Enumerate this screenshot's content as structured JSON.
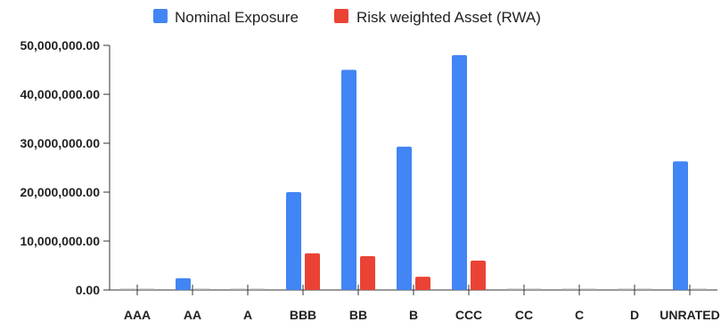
{
  "chart_data": {
    "type": "bar",
    "categories": [
      "AAA",
      "AA",
      "A",
      "BBB",
      "BB",
      "B",
      "CCC",
      "CC",
      "C",
      "D",
      "UNRATED"
    ],
    "series": [
      {
        "name": "Nominal Exposure",
        "color": "#4285F4",
        "values": [
          0,
          2400000,
          0,
          20000000,
          45000000,
          29300000,
          48000000,
          0,
          0,
          0,
          26300000
        ]
      },
      {
        "name": "Risk weighted Asset (RWA)",
        "color": "#EA4335",
        "values": [
          0,
          0,
          0,
          7500000,
          6900000,
          2700000,
          6000000,
          0,
          0,
          0,
          0
        ]
      }
    ],
    "y_ticks": [
      "0.00",
      "10,000,000.00",
      "20,000,000.00",
      "30,000,000.00",
      "40,000,000.00",
      "50,000,000.00"
    ],
    "ylim": [
      0,
      50000000
    ],
    "legend_position": "top-center",
    "grid": false,
    "title": "",
    "xlabel": "",
    "ylabel": ""
  }
}
